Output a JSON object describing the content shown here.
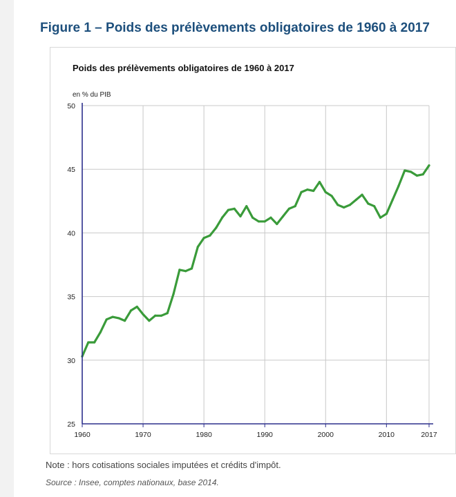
{
  "figure": {
    "title": "Figure 1 – Poids des prélèvements obligatoires de 1960 à 2017",
    "note": "Note : hors cotisations sociales imputées et crédits d'impôt.",
    "source": "Source : Insee, comptes nationaux, base 2014."
  },
  "chart_data": {
    "type": "line",
    "title": "Poids des prélèvements obligatoires de 1960 à 2017",
    "ylabel": "en % du PIB",
    "xlabel": "",
    "xlim": [
      1960,
      2017
    ],
    "ylim": [
      25,
      50
    ],
    "x_ticks": [
      1960,
      1970,
      1980,
      1990,
      2000,
      2010,
      2017
    ],
    "x_tick_labels": [
      "1960",
      "1970",
      "1980",
      "1990",
      "2000",
      "2010",
      "2017"
    ],
    "y_ticks": [
      25,
      30,
      35,
      40,
      45,
      50
    ],
    "y_tick_labels": [
      "25",
      "30",
      "35",
      "40",
      "45",
      "50"
    ],
    "grid": true,
    "line_color": "#3a9b3a",
    "axis_color": "#2b2e8c",
    "series": [
      {
        "name": "Prélèvements obligatoires",
        "x": [
          1960,
          1961,
          1962,
          1963,
          1964,
          1965,
          1966,
          1967,
          1968,
          1969,
          1970,
          1971,
          1972,
          1973,
          1974,
          1975,
          1976,
          1977,
          1978,
          1979,
          1980,
          1981,
          1982,
          1983,
          1984,
          1985,
          1986,
          1987,
          1988,
          1989,
          1990,
          1991,
          1992,
          1993,
          1994,
          1995,
          1996,
          1997,
          1998,
          1999,
          2000,
          2001,
          2002,
          2003,
          2004,
          2005,
          2006,
          2007,
          2008,
          2009,
          2010,
          2011,
          2012,
          2013,
          2014,
          2015,
          2016,
          2017
        ],
        "values": [
          30.3,
          31.4,
          31.4,
          32.2,
          33.2,
          33.4,
          33.3,
          33.1,
          33.9,
          34.2,
          33.6,
          33.1,
          33.5,
          33.5,
          33.7,
          35.2,
          37.1,
          37.0,
          37.2,
          38.9,
          39.6,
          39.8,
          40.4,
          41.2,
          41.8,
          41.9,
          41.3,
          42.1,
          41.2,
          40.9,
          40.9,
          41.2,
          40.7,
          41.3,
          41.9,
          42.1,
          43.2,
          43.4,
          43.3,
          44.0,
          43.2,
          42.9,
          42.2,
          42.0,
          42.2,
          42.6,
          43.0,
          42.3,
          42.1,
          41.2,
          41.5,
          42.6,
          43.7,
          44.9,
          44.8,
          44.5,
          44.6,
          45.3
        ]
      }
    ]
  }
}
